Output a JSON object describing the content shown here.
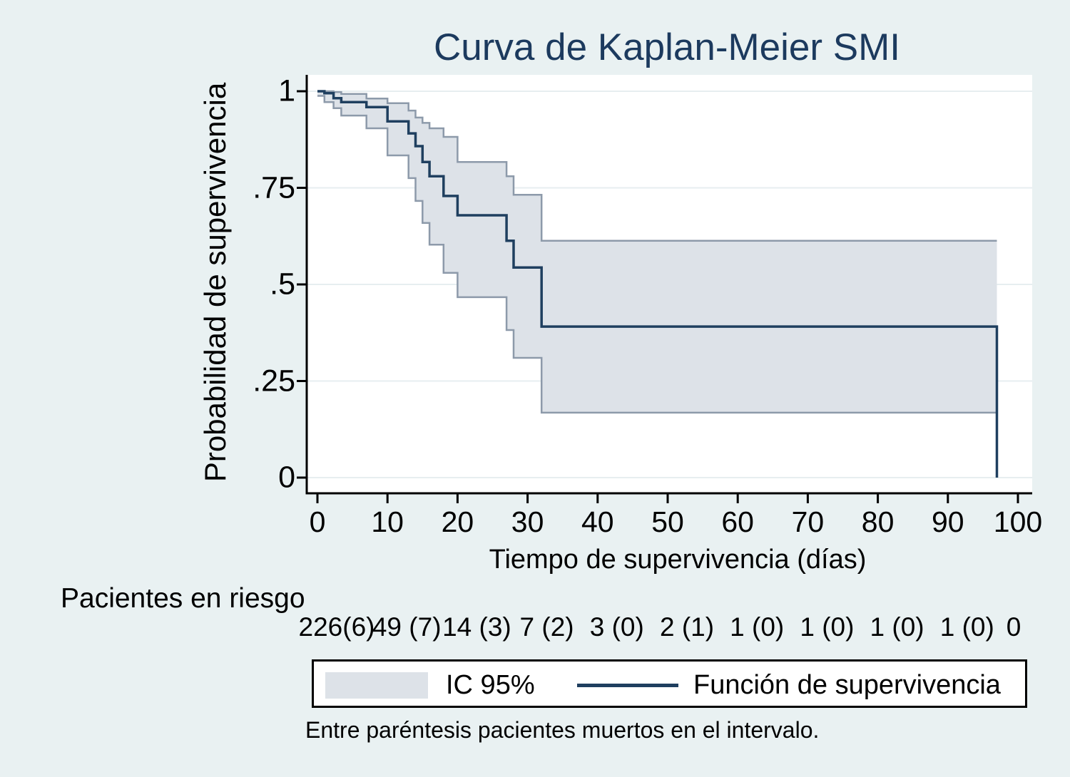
{
  "title": {
    "text": "Curva de Kaplan-Meier SMI"
  },
  "axes": {
    "y": {
      "label": "Probabilidad de supervivencia",
      "ticks": [
        {
          "value": 0,
          "label": "0"
        },
        {
          "value": 0.25,
          "label": ".25"
        },
        {
          "value": 0.5,
          "label": ".5"
        },
        {
          "value": 0.75,
          "label": ".75"
        },
        {
          "value": 1,
          "label": "1"
        }
      ]
    },
    "x": {
      "label": "Tiempo de supervivencia (días)",
      "ticks": [
        {
          "value": 0,
          "label": "0"
        },
        {
          "value": 10,
          "label": "10"
        },
        {
          "value": 20,
          "label": "20"
        },
        {
          "value": 30,
          "label": "30"
        },
        {
          "value": 40,
          "label": "40"
        },
        {
          "value": 50,
          "label": "50"
        },
        {
          "value": 60,
          "label": "60"
        },
        {
          "value": 70,
          "label": "70"
        },
        {
          "value": 80,
          "label": "80"
        },
        {
          "value": 90,
          "label": "90"
        },
        {
          "value": 100,
          "label": "100"
        }
      ]
    }
  },
  "risk_table": {
    "label": "Pacientes en riesgo",
    "entries": [
      {
        "time": 0,
        "label": "226(6)"
      },
      {
        "time": 10,
        "label": "49 (7)"
      },
      {
        "time": 20,
        "label": "14 (3)"
      },
      {
        "time": 30,
        "label": "7 (2)"
      },
      {
        "time": 40,
        "label": "3 (0)"
      },
      {
        "time": 50,
        "label": "2 (1)"
      },
      {
        "time": 60,
        "label": "1 (0)"
      },
      {
        "time": 70,
        "label": "1 (0)"
      },
      {
        "time": 80,
        "label": "1 (0)"
      },
      {
        "time": 90,
        "label": "1 (0)"
      },
      {
        "time": 100,
        "label": "0"
      }
    ]
  },
  "legend": {
    "ci_label": "IC 95%",
    "line_label": "Función de supervivencia"
  },
  "footnote": "Entre paréntesis pacientes muertos en el intervalo.",
  "colors": {
    "background": "#e9f1f2",
    "plot_background": "#ffffff",
    "gridline": "#e7eef0",
    "axis": "#000000",
    "title_color": "#1c3a5e",
    "survival_line": "#1f3f5f",
    "ci_fill": "#dde2e8",
    "ci_edge": "#8d9aaa"
  },
  "chart_data": {
    "type": "line",
    "subtype": "kaplan_meier_step",
    "title": "Curva de Kaplan-Meier SMI",
    "xlabel": "Tiempo de supervivencia (días)",
    "ylabel": "Probabilidad de supervivencia",
    "xlim": [
      0,
      100
    ],
    "ylim": [
      0,
      1
    ],
    "xticks": [
      0,
      10,
      20,
      30,
      40,
      50,
      60,
      70,
      80,
      90,
      100
    ],
    "yticks": [
      0,
      0.25,
      0.5,
      0.75,
      1
    ],
    "grid": true,
    "legend_position": "bottom",
    "step_times": [
      0,
      1,
      2.3,
      3.4,
      7,
      10,
      13,
      14,
      15,
      16,
      18,
      20,
      27,
      28,
      32
    ],
    "series": [
      {
        "name": "Función de supervivencia",
        "values": [
          1.0,
          0.995,
          0.982,
          0.972,
          0.959,
          0.922,
          0.891,
          0.858,
          0.817,
          0.78,
          0.729,
          0.679,
          0.613,
          0.544,
          0.391
        ]
      },
      {
        "name": "IC 95% límite superior",
        "values": [
          1.0,
          1.0,
          0.998,
          0.993,
          0.981,
          0.969,
          0.95,
          0.932,
          0.918,
          0.904,
          0.882,
          0.817,
          0.78,
          0.732,
          0.613
        ]
      },
      {
        "name": "IC 95% límite inferior",
        "values": [
          0.988,
          0.972,
          0.956,
          0.937,
          0.904,
          0.834,
          0.775,
          0.716,
          0.659,
          0.603,
          0.53,
          0.467,
          0.382,
          0.31,
          0.168
        ]
      }
    ],
    "final_event_time": 97,
    "final_survival": 0,
    "at_risk_times": [
      0,
      10,
      20,
      30,
      40,
      50,
      60,
      70,
      80,
      90,
      100
    ],
    "at_risk_counts": [
      "226(6)",
      "49 (7)",
      "14 (3)",
      "7 (2)",
      "3 (0)",
      "2 (1)",
      "1 (0)",
      "1 (0)",
      "1 (0)",
      "1 (0)",
      "0"
    ]
  }
}
